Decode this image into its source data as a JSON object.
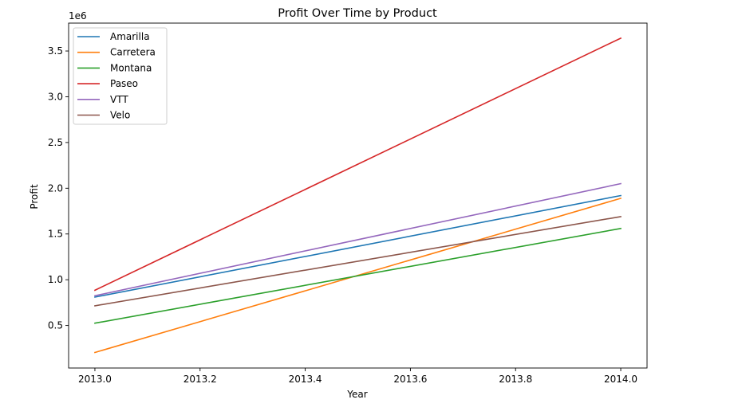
{
  "chart_data": {
    "type": "line",
    "title": "Profit Over Time by Product",
    "xlabel": "Year",
    "ylabel": "Profit",
    "y_offset_label": "1e6",
    "x": [
      2013.0,
      2014.0
    ],
    "xlim": [
      2012.95,
      2014.05
    ],
    "ylim": [
      0.035,
      3.805
    ],
    "y_scale": 1000000,
    "xticks": [
      2013.0,
      2013.2,
      2013.4,
      2013.6,
      2013.8,
      2014.0
    ],
    "xtick_labels": [
      "2013.0",
      "2013.2",
      "2013.4",
      "2013.6",
      "2013.8",
      "2014.0"
    ],
    "yticks": [
      0.5,
      1.0,
      1.5,
      2.0,
      2.5,
      3.0,
      3.5
    ],
    "ytick_labels": [
      "0.5",
      "1.0",
      "1.5",
      "2.0",
      "2.5",
      "3.0",
      "3.5"
    ],
    "grid": false,
    "legend_position": "top-left",
    "series": [
      {
        "name": "Amarilla",
        "color": "#1f77b4",
        "values": [
          0.81,
          1.92
        ]
      },
      {
        "name": "Carretera",
        "color": "#ff7f0e",
        "values": [
          0.205,
          1.89
        ]
      },
      {
        "name": "Montana",
        "color": "#2ca02c",
        "values": [
          0.525,
          1.56
        ]
      },
      {
        "name": "Paseo",
        "color": "#d62728",
        "values": [
          0.885,
          3.64
        ]
      },
      {
        "name": "VTT",
        "color": "#9467bd",
        "values": [
          0.825,
          2.05
        ]
      },
      {
        "name": "Velo",
        "color": "#8c564b",
        "values": [
          0.715,
          1.69
        ]
      }
    ]
  }
}
